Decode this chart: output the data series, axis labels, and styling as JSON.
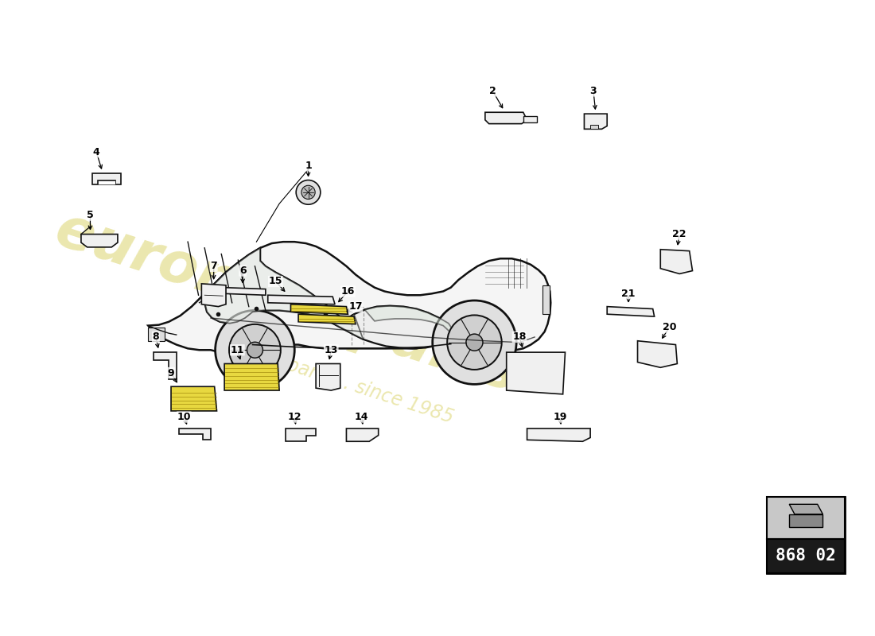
{
  "background_color": "#ffffff",
  "part_number": "868 02",
  "watermark_color1": "#d8d060",
  "watermark_color2": "#c8c050",
  "watermark_alpha": 0.5,
  "car_line_color": "#111111",
  "car_fill": "#f5f5f5",
  "part_fill": "#f0f0f0",
  "part_edge": "#111111",
  "yellow_fill": "#e8d840",
  "lw_main": 1.8,
  "lw_part": 1.2,
  "font_size_label": 9,
  "box_fill_dark": "#1a1a1a",
  "box_fill_gray": "#c8c8c8",
  "box_text_color": "#ffffff"
}
